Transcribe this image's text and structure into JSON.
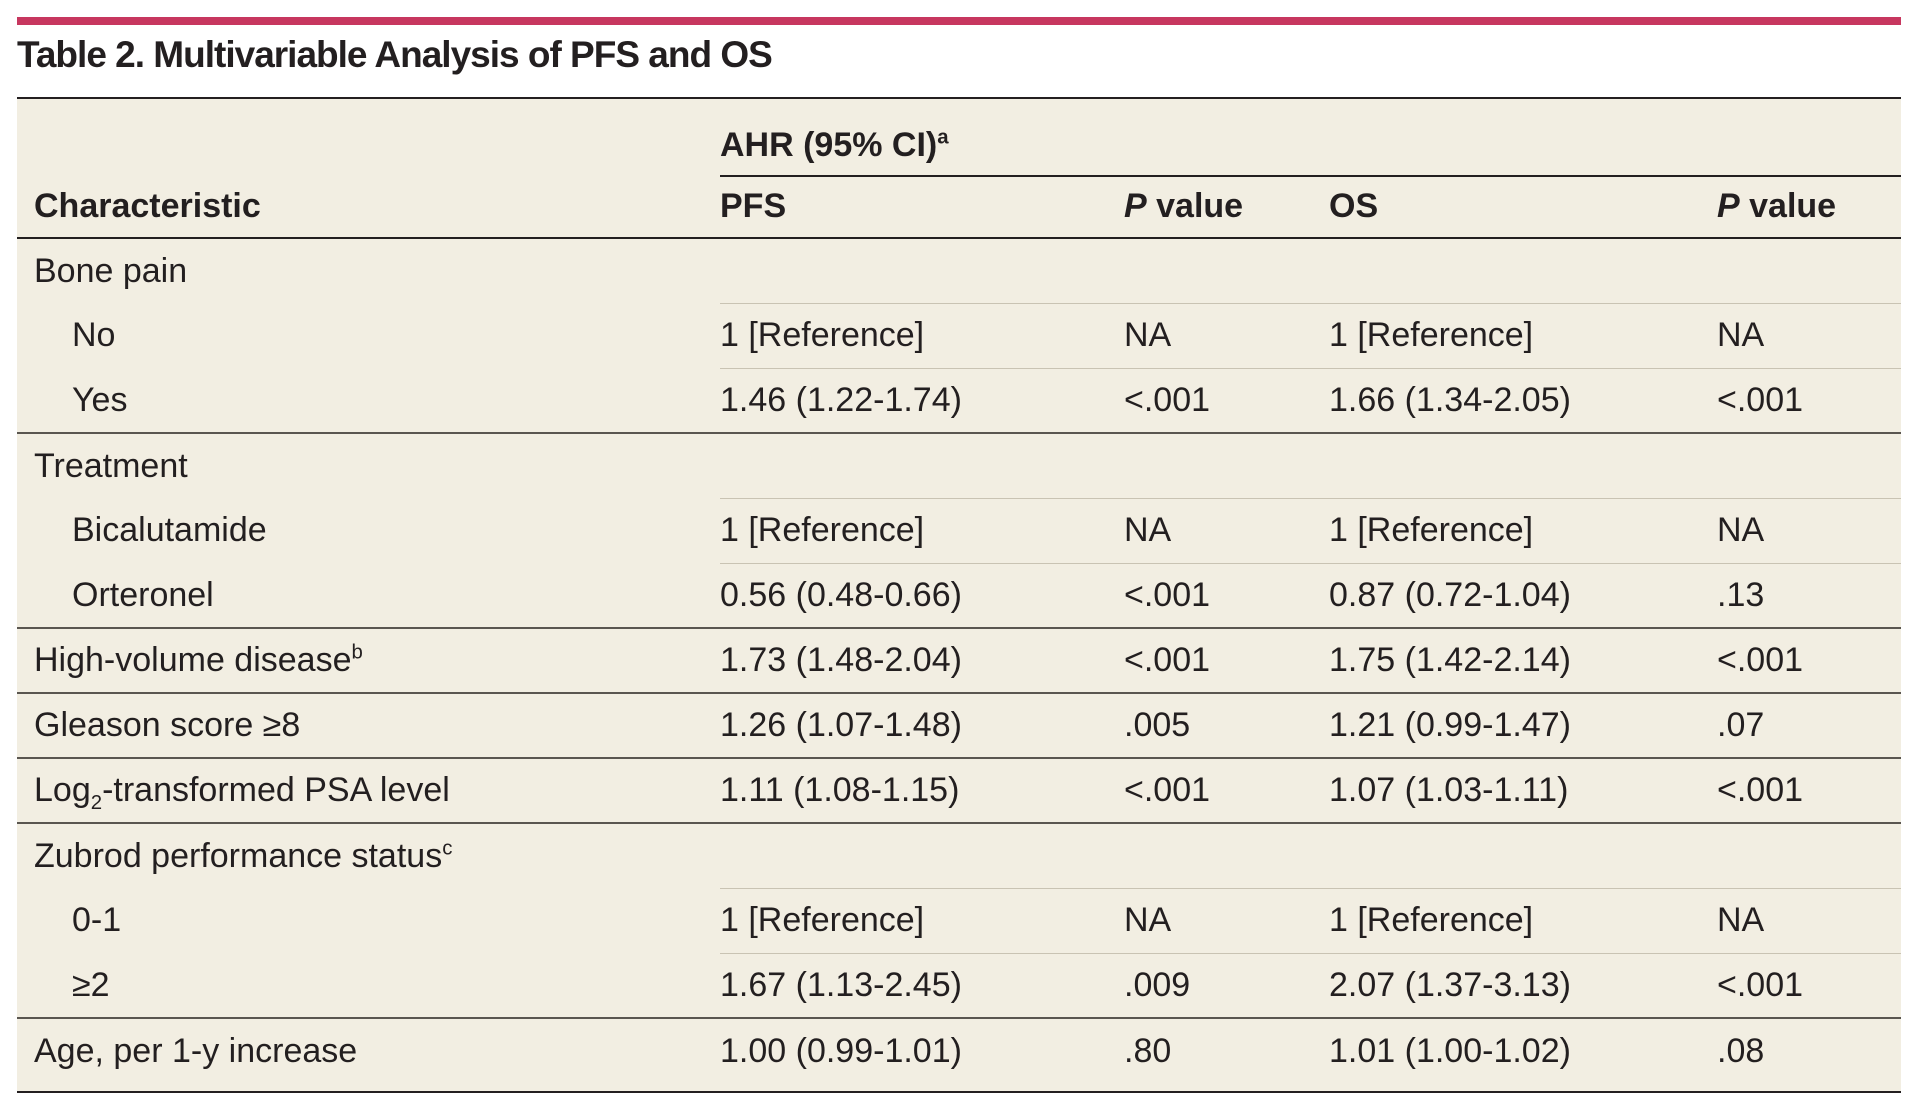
{
  "title": "Table 2. Multivariable Analysis of PFS and OS",
  "header": {
    "group_label": "AHR (95% CI)",
    "group_note": "a",
    "characteristic": "Characteristic",
    "pfs": "PFS",
    "p_italic": "P",
    "p_value_suffix": " value",
    "os": "OS"
  },
  "rows": [
    {
      "label": "Bone pain",
      "pfs": "",
      "pfs_p": "",
      "os": "",
      "os_p": ""
    },
    {
      "label": "No",
      "pfs": "1 [Reference]",
      "pfs_p": "NA",
      "os": "1 [Reference]",
      "os_p": "NA"
    },
    {
      "label": "Yes",
      "pfs": "1.46 (1.22-1.74)",
      "pfs_p": "<.001",
      "os": "1.66 (1.34-2.05)",
      "os_p": "<.001"
    },
    {
      "label": "Treatment",
      "pfs": "",
      "pfs_p": "",
      "os": "",
      "os_p": ""
    },
    {
      "label": "Bicalutamide",
      "pfs": "1 [Reference]",
      "pfs_p": "NA",
      "os": "1 [Reference]",
      "os_p": "NA"
    },
    {
      "label": "Orteronel",
      "pfs": "0.56 (0.48-0.66)",
      "pfs_p": "<.001",
      "os": "0.87 (0.72-1.04)",
      "os_p": ".13"
    },
    {
      "label": "High-volume disease",
      "note": "b",
      "pfs": "1.73 (1.48-2.04)",
      "pfs_p": "<.001",
      "os": "1.75 (1.42-2.14)",
      "os_p": "<.001"
    },
    {
      "label": "Gleason score ≥8",
      "pfs": "1.26 (1.07-1.48)",
      "pfs_p": ".005",
      "os": "1.21 (0.99-1.47)",
      "os_p": ".07"
    },
    {
      "label_pre": "Log",
      "label_sub": "2",
      "label_post": "-transformed PSA level",
      "pfs": "1.11 (1.08-1.15)",
      "pfs_p": "<.001",
      "os": "1.07 (1.03-1.11)",
      "os_p": "<.001"
    },
    {
      "label": "Zubrod performance status",
      "note": "c",
      "pfs": "",
      "pfs_p": "",
      "os": "",
      "os_p": ""
    },
    {
      "label": "0-1",
      "pfs": "1 [Reference]",
      "pfs_p": "NA",
      "os": "1 [Reference]",
      "os_p": "NA"
    },
    {
      "label": "≥2",
      "pfs": "1.67 (1.13-2.45)",
      "pfs_p": ".009",
      "os": "2.07 (1.37-3.13)",
      "os_p": "<.001"
    },
    {
      "label": "Age, per 1-y increase",
      "pfs": "1.00 (0.99-1.01)",
      "pfs_p": ".80",
      "os": "1.01 (1.00-1.02)",
      "os_p": ".08"
    }
  ],
  "colors": {
    "accent_bar": "#c7375f",
    "table_background": "#f2eee2",
    "text": "#231f20"
  }
}
